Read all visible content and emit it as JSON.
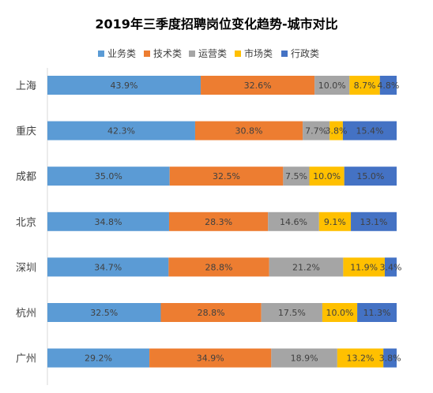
{
  "chart_data": {
    "type": "bar",
    "orientation": "horizontal",
    "stacked": "percent",
    "title": "2019年三季度招聘岗位变化趋势-城市对比",
    "legend_position": "top",
    "grid": false,
    "categories": [
      "上海",
      "重庆",
      "成都",
      "北京",
      "深圳",
      "杭州",
      "广州"
    ],
    "series": [
      {
        "name": "业务类",
        "color": "#5B9BD5",
        "values": [
          43.9,
          42.3,
          35.0,
          34.8,
          34.7,
          32.5,
          29.2
        ],
        "labels": [
          "43.9%",
          "42.3%",
          "35.0%",
          "34.8%",
          "34.7%",
          "32.5%",
          "29.2%"
        ]
      },
      {
        "name": "技术类",
        "color": "#ED7D31",
        "values": [
          32.6,
          30.8,
          32.5,
          28.3,
          28.8,
          28.8,
          34.9
        ],
        "labels": [
          "32.6%",
          "30.8%",
          "32.5%",
          "28.3%",
          "28.8%",
          "28.8%",
          "34.9%"
        ]
      },
      {
        "name": "运营类",
        "color": "#A5A5A5",
        "values": [
          10.0,
          7.7,
          7.5,
          14.6,
          21.2,
          17.5,
          18.9
        ],
        "labels": [
          "10.0%",
          "7.7%",
          "7.5%",
          "14.6%",
          "21.2%",
          "17.5%",
          "18.9%"
        ]
      },
      {
        "name": "市场类",
        "color": "#FFC000",
        "values": [
          8.7,
          3.8,
          10.0,
          9.1,
          11.9,
          10.0,
          13.2
        ],
        "labels": [
          "8.7%",
          "3.8%",
          "10.0%",
          "9.1%",
          "11.9%",
          "10.0%",
          "13.2%"
        ]
      },
      {
        "name": "行政类",
        "color": "#4472C4",
        "values": [
          4.8,
          15.4,
          15.0,
          13.1,
          3.4,
          11.3,
          3.8
        ],
        "labels": [
          "4.8%",
          "15.4%",
          "15.0%",
          "13.1%",
          "3.4%",
          "11.3%",
          "3.8%"
        ]
      }
    ]
  }
}
